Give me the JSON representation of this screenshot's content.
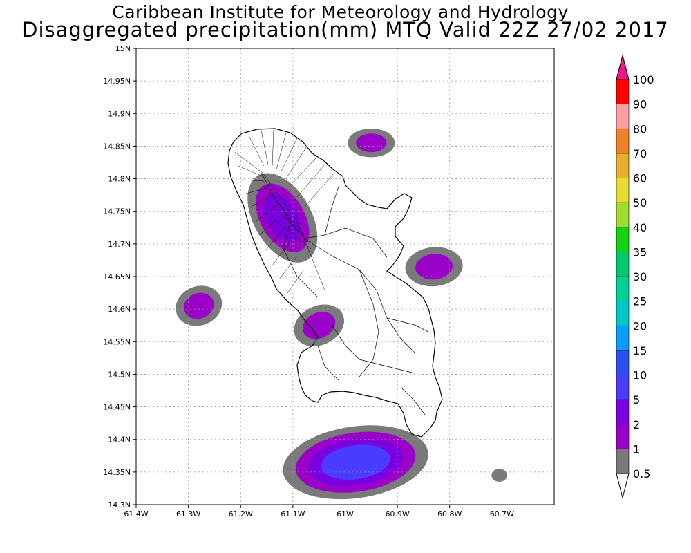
{
  "title": {
    "line1": "Caribbean Institute for Meteorology and Hydrology",
    "line2": "Disaggregated precipitation(mm) MTQ Valid 22Z 27/02 2017"
  },
  "map": {
    "lon_range": [
      -61.4,
      -60.6
    ],
    "lat_range": [
      14.3,
      15.0
    ],
    "grid": true,
    "lon_ticks": [
      {
        "value": -61.4,
        "label": "61.4W"
      },
      {
        "value": -61.3,
        "label": "61.3W"
      },
      {
        "value": -61.2,
        "label": "61.2W"
      },
      {
        "value": -61.1,
        "label": "61.1W"
      },
      {
        "value": -61.0,
        "label": "61W"
      },
      {
        "value": -60.9,
        "label": "60.9W"
      },
      {
        "value": -60.8,
        "label": "60.8W"
      },
      {
        "value": -60.7,
        "label": "60.7W"
      }
    ],
    "lat_ticks": [
      {
        "value": 14.3,
        "label": "14.3N"
      },
      {
        "value": 14.35,
        "label": "14.35N"
      },
      {
        "value": 14.4,
        "label": "14.4N"
      },
      {
        "value": 14.45,
        "label": "14.45N"
      },
      {
        "value": 14.5,
        "label": "14.5N"
      },
      {
        "value": 14.55,
        "label": "14.55N"
      },
      {
        "value": 14.6,
        "label": "14.6N"
      },
      {
        "value": 14.65,
        "label": "14.65N"
      },
      {
        "value": 14.7,
        "label": "14.7N"
      },
      {
        "value": 14.75,
        "label": "14.75N"
      },
      {
        "value": 14.8,
        "label": "14.8N"
      },
      {
        "value": 14.85,
        "label": "14.85N"
      },
      {
        "value": 14.9,
        "label": "14.9N"
      },
      {
        "value": 14.95,
        "label": "14.95N"
      },
      {
        "value": 15.0,
        "label": "15N"
      }
    ]
  },
  "colorbar": {
    "bands": [
      {
        "color": "#7a7a7a",
        "label": "0.5"
      },
      {
        "color": "#9a00c8",
        "label": "1"
      },
      {
        "color": "#7a00e0",
        "label": "2"
      },
      {
        "color": "#4a3cff",
        "label": "5"
      },
      {
        "color": "#2a50f0",
        "label": "10"
      },
      {
        "color": "#0a9cff",
        "label": "15"
      },
      {
        "color": "#00c8c8",
        "label": "20"
      },
      {
        "color": "#00d296",
        "label": "25"
      },
      {
        "color": "#00c86e",
        "label": "30"
      },
      {
        "color": "#14d214",
        "label": "35"
      },
      {
        "color": "#a0dc32",
        "label": "40"
      },
      {
        "color": "#e6dc32",
        "label": "50"
      },
      {
        "color": "#e6af2d",
        "label": "60"
      },
      {
        "color": "#f08228",
        "label": "70"
      },
      {
        "color": "#ffa0a0",
        "label": "80"
      },
      {
        "color": "#ff0000",
        "label": "90"
      },
      {
        "color": "#f03c3c",
        "label": "100"
      }
    ],
    "top_arrow_color": "#f0148c"
  },
  "precip_blobs": [
    {
      "lon": -61.12,
      "lat": 14.74,
      "rlon": 0.055,
      "rlat": 0.075,
      "rot": -30,
      "levels": [
        0.5,
        1,
        2
      ]
    },
    {
      "lon": -60.95,
      "lat": 14.855,
      "rlon": 0.045,
      "rlat": 0.022,
      "rot": 0,
      "levels": [
        0.5,
        1
      ]
    },
    {
      "lon": -60.83,
      "lat": 14.665,
      "rlon": 0.055,
      "rlat": 0.03,
      "rot": -5,
      "levels": [
        0.5,
        1
      ]
    },
    {
      "lon": -61.28,
      "lat": 14.605,
      "rlon": 0.045,
      "rlat": 0.03,
      "rot": -20,
      "levels": [
        0.5,
        1
      ]
    },
    {
      "lon": -61.05,
      "lat": 14.575,
      "rlon": 0.05,
      "rlat": 0.03,
      "rot": -25,
      "levels": [
        0.5,
        1
      ]
    },
    {
      "lon": -60.98,
      "lat": 14.365,
      "rlon": 0.14,
      "rlat": 0.055,
      "rot": -8,
      "levels": [
        0.5,
        1,
        2,
        5
      ]
    },
    {
      "lon": -60.705,
      "lat": 14.345,
      "rlon": 0.015,
      "rlat": 0.01,
      "rot": 0,
      "levels": [
        0.5
      ]
    }
  ]
}
